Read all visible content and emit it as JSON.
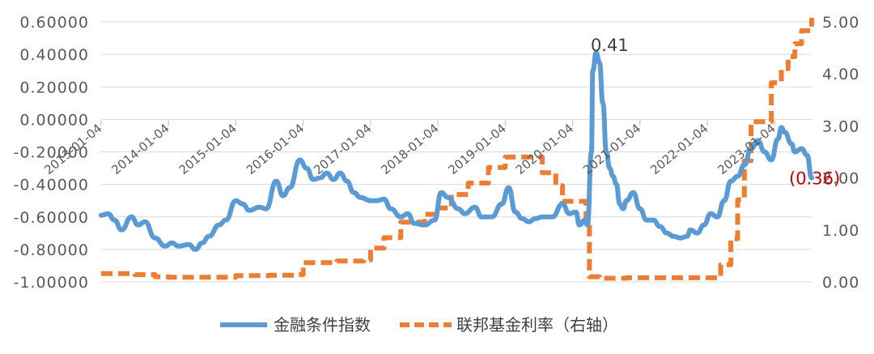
{
  "chart_data": {
    "type": "line",
    "x_tick_labels": [
      "2013-01-04",
      "2014-01-04",
      "2015-01-04",
      "2016-01-04",
      "2017-01-04",
      "2018-01-04",
      "2019-01-04",
      "2020-01-04",
      "2021-01-04",
      "2022-01-04",
      "2023-01-04"
    ],
    "y_left": {
      "ylim": [
        -1.0,
        0.6
      ],
      "ticks": [
        "0.60000",
        "0.40000",
        "0.20000",
        "0.00000",
        "-0.20000",
        "-0.40000",
        "-0.60000",
        "-0.80000",
        "-1.00000"
      ]
    },
    "y_right": {
      "ylim": [
        0,
        5
      ],
      "ticks": [
        "5.00",
        "4.00",
        "3.00",
        "2.00",
        "1.00",
        "0.00"
      ]
    },
    "grid": "horizontal",
    "legend": "bottom",
    "annotations": [
      {
        "text": "0.41",
        "x": 2020.55,
        "y": 0.41,
        "axis": "left",
        "color": "#404040"
      },
      {
        "text": "(0.36)",
        "x": 2023.55,
        "y": -0.36,
        "axis": "left",
        "color": "#c00000"
      }
    ],
    "series": [
      {
        "name": "金融条件指数",
        "axis": "left",
        "color": "#5b9bd5",
        "style": "solid",
        "points": [
          [
            2013.0,
            -0.59
          ],
          [
            2013.1,
            -0.58
          ],
          [
            2013.2,
            -0.62
          ],
          [
            2013.3,
            -0.68
          ],
          [
            2013.45,
            -0.6
          ],
          [
            2013.55,
            -0.65
          ],
          [
            2013.65,
            -0.63
          ],
          [
            2013.8,
            -0.73
          ],
          [
            2013.95,
            -0.78
          ],
          [
            2014.05,
            -0.76
          ],
          [
            2014.15,
            -0.78
          ],
          [
            2014.3,
            -0.77
          ],
          [
            2014.4,
            -0.8
          ],
          [
            2014.5,
            -0.76
          ],
          [
            2014.6,
            -0.72
          ],
          [
            2014.75,
            -0.65
          ],
          [
            2014.85,
            -0.62
          ],
          [
            2015.0,
            -0.5
          ],
          [
            2015.1,
            -0.52
          ],
          [
            2015.2,
            -0.56
          ],
          [
            2015.35,
            -0.54
          ],
          [
            2015.45,
            -0.55
          ],
          [
            2015.6,
            -0.38
          ],
          [
            2015.7,
            -0.47
          ],
          [
            2015.8,
            -0.42
          ],
          [
            2015.95,
            -0.25
          ],
          [
            2016.05,
            -0.3
          ],
          [
            2016.15,
            -0.37
          ],
          [
            2016.25,
            -0.36
          ],
          [
            2016.35,
            -0.33
          ],
          [
            2016.45,
            -0.37
          ],
          [
            2016.55,
            -0.33
          ],
          [
            2016.65,
            -0.38
          ],
          [
            2016.75,
            -0.45
          ],
          [
            2016.85,
            -0.48
          ],
          [
            2017.0,
            -0.5
          ],
          [
            2017.1,
            -0.5
          ],
          [
            2017.2,
            -0.49
          ],
          [
            2017.3,
            -0.55
          ],
          [
            2017.45,
            -0.6
          ],
          [
            2017.55,
            -0.58
          ],
          [
            2017.65,
            -0.64
          ],
          [
            2017.8,
            -0.65
          ],
          [
            2017.95,
            -0.62
          ],
          [
            2018.05,
            -0.45
          ],
          [
            2018.15,
            -0.48
          ],
          [
            2018.3,
            -0.55
          ],
          [
            2018.4,
            -0.58
          ],
          [
            2018.55,
            -0.54
          ],
          [
            2018.65,
            -0.6
          ],
          [
            2018.8,
            -0.6
          ],
          [
            2018.95,
            -0.52
          ],
          [
            2019.05,
            -0.42
          ],
          [
            2019.15,
            -0.57
          ],
          [
            2019.25,
            -0.61
          ],
          [
            2019.35,
            -0.63
          ],
          [
            2019.45,
            -0.61
          ],
          [
            2019.55,
            -0.6
          ],
          [
            2019.7,
            -0.6
          ],
          [
            2019.85,
            -0.52
          ],
          [
            2019.95,
            -0.58
          ],
          [
            2020.05,
            -0.57
          ],
          [
            2020.1,
            -0.65
          ],
          [
            2020.18,
            -0.62
          ],
          [
            2020.22,
            -0.65
          ],
          [
            2020.28,
            -0.2
          ],
          [
            2020.3,
            0.3
          ],
          [
            2020.35,
            0.41
          ],
          [
            2020.4,
            0.35
          ],
          [
            2020.45,
            0.1
          ],
          [
            2020.5,
            -0.2
          ],
          [
            2020.55,
            -0.3
          ],
          [
            2020.6,
            -0.35
          ],
          [
            2020.65,
            -0.4
          ],
          [
            2020.7,
            -0.52
          ],
          [
            2020.75,
            -0.55
          ],
          [
            2020.8,
            -0.5
          ],
          [
            2020.9,
            -0.45
          ],
          [
            2021.0,
            -0.55
          ],
          [
            2021.1,
            -0.62
          ],
          [
            2021.2,
            -0.62
          ],
          [
            2021.3,
            -0.66
          ],
          [
            2021.4,
            -0.7
          ],
          [
            2021.5,
            -0.72
          ],
          [
            2021.6,
            -0.73
          ],
          [
            2021.7,
            -0.72
          ],
          [
            2021.75,
            -0.68
          ],
          [
            2021.85,
            -0.7
          ],
          [
            2021.95,
            -0.65
          ],
          [
            2022.05,
            -0.58
          ],
          [
            2022.15,
            -0.6
          ],
          [
            2022.25,
            -0.5
          ],
          [
            2022.35,
            -0.38
          ],
          [
            2022.45,
            -0.35
          ],
          [
            2022.55,
            -0.28
          ],
          [
            2022.65,
            -0.18
          ],
          [
            2022.75,
            -0.13
          ],
          [
            2022.85,
            -0.2
          ],
          [
            2022.95,
            -0.25
          ],
          [
            2023.05,
            -0.12
          ],
          [
            2023.1,
            -0.05
          ],
          [
            2023.15,
            -0.08
          ],
          [
            2023.25,
            -0.15
          ],
          [
            2023.3,
            -0.2
          ],
          [
            2023.4,
            -0.18
          ],
          [
            2023.48,
            -0.22
          ],
          [
            2023.55,
            -0.36
          ]
        ]
      },
      {
        "name": "联邦基金利率（右轴）",
        "axis": "right",
        "color": "#ed7d31",
        "style": "dashed",
        "points": [
          [
            2013.0,
            0.16
          ],
          [
            2013.5,
            0.14
          ],
          [
            2013.8,
            0.1
          ],
          [
            2014.0,
            0.09
          ],
          [
            2014.5,
            0.09
          ],
          [
            2015.0,
            0.12
          ],
          [
            2015.5,
            0.13
          ],
          [
            2015.9,
            0.14
          ],
          [
            2016.0,
            0.37
          ],
          [
            2016.5,
            0.4
          ],
          [
            2016.9,
            0.42
          ],
          [
            2017.0,
            0.65
          ],
          [
            2017.2,
            0.85
          ],
          [
            2017.45,
            1.15
          ],
          [
            2017.8,
            1.3
          ],
          [
            2018.0,
            1.42
          ],
          [
            2018.2,
            1.68
          ],
          [
            2018.45,
            1.9
          ],
          [
            2018.75,
            2.2
          ],
          [
            2019.0,
            2.4
          ],
          [
            2019.5,
            2.4
          ],
          [
            2019.55,
            2.1
          ],
          [
            2019.75,
            1.85
          ],
          [
            2019.85,
            1.55
          ],
          [
            2020.15,
            1.55
          ],
          [
            2020.2,
            1.1
          ],
          [
            2020.25,
            0.1
          ],
          [
            2020.4,
            0.07
          ],
          [
            2020.8,
            0.08
          ],
          [
            2021.0,
            0.08
          ],
          [
            2021.5,
            0.08
          ],
          [
            2022.0,
            0.08
          ],
          [
            2022.2,
            0.33
          ],
          [
            2022.35,
            0.83
          ],
          [
            2022.45,
            1.58
          ],
          [
            2022.55,
            2.33
          ],
          [
            2022.65,
            3.08
          ],
          [
            2022.8,
            3.08
          ],
          [
            2022.95,
            3.83
          ],
          [
            2023.1,
            4.1
          ],
          [
            2023.2,
            4.33
          ],
          [
            2023.3,
            4.58
          ],
          [
            2023.4,
            4.83
          ],
          [
            2023.55,
            5.08
          ]
        ]
      }
    ]
  }
}
